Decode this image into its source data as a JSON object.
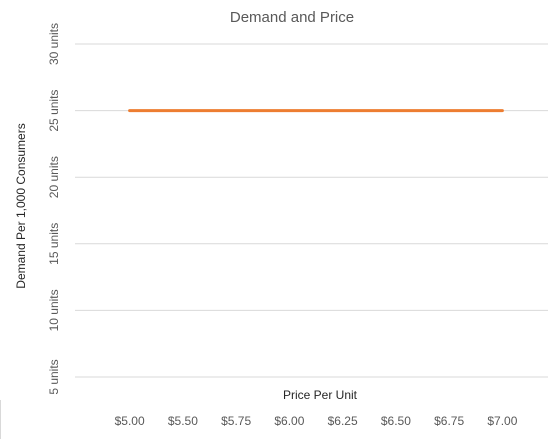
{
  "chart_data": {
    "type": "line",
    "title": "Demand and Price",
    "xlabel": "Price Per Unit",
    "ylabel": "Demand Per 1,000 Consumers",
    "categories": [
      "$5.00",
      "$5.50",
      "$5.75",
      "$6.00",
      "$6.25",
      "$6.50",
      "$6.75",
      "$7.00"
    ],
    "series": [
      {
        "values": [
          25,
          25,
          25,
          25,
          25,
          25,
          25,
          25
        ],
        "color": "#ed7d31"
      }
    ],
    "y_ticks": [
      5,
      10,
      15,
      20,
      25,
      30
    ],
    "y_tick_labels": [
      "5 units",
      "10 units",
      "15 units",
      "20 units",
      "25 units",
      "30 units"
    ],
    "ylim": [
      5,
      30
    ],
    "grid": true,
    "legend": "none"
  }
}
